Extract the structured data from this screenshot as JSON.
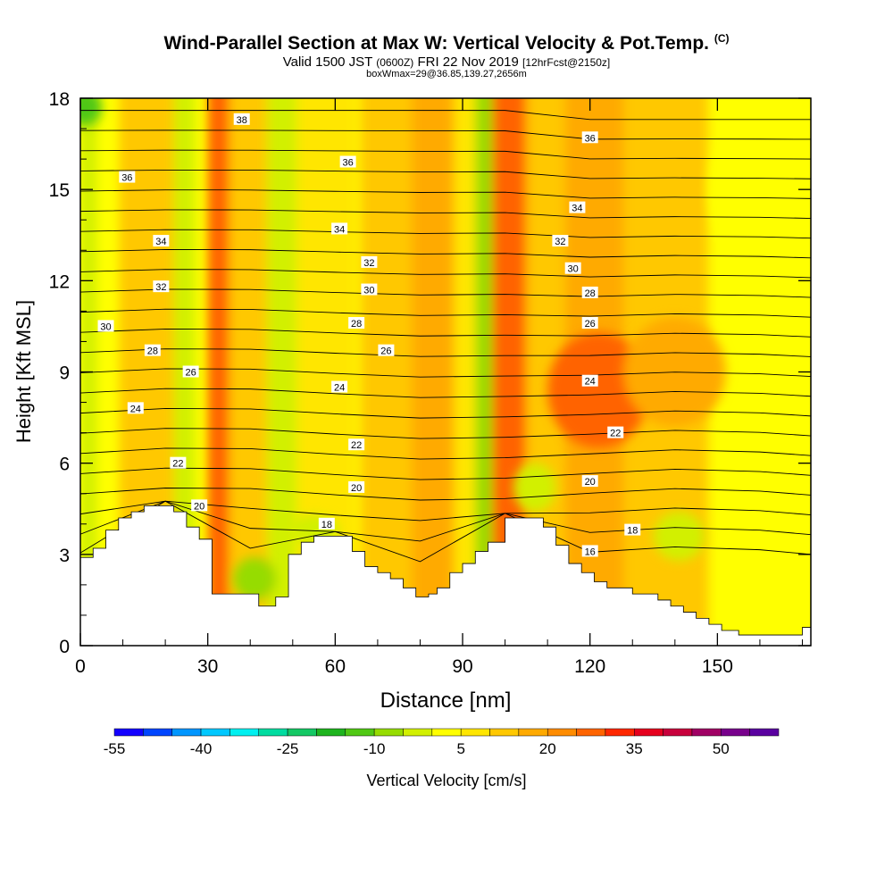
{
  "header": {
    "title": "Wind-Parallel Section at Max W: Vertical Velocity & Pot.Temp.",
    "copyright": "(C)",
    "valid_main": "Valid 1500 JST",
    "valid_zulu": "(0600Z)",
    "valid_date": "FRI 22 Nov 2019",
    "forecast": "[12hrFcst@2150z]",
    "box_info": "boxWmax=29@36.85,139.27,2656m"
  },
  "chart_data": {
    "type": "heatmap",
    "xlabel": "Distance [nm]",
    "ylabel": "Height [Kft MSL]",
    "xlim": [
      0,
      172
    ],
    "ylim": [
      0,
      18
    ],
    "x_ticks": [
      0,
      30,
      60,
      90,
      120,
      150
    ],
    "y_ticks": [
      0,
      3,
      6,
      9,
      12,
      15,
      18
    ],
    "colorbar": {
      "label": "Vertical Velocity [cm/s]",
      "tick_labels": [
        "-55",
        "-40",
        "-25",
        "-10",
        "5",
        "20",
        "35",
        "50"
      ],
      "colors": [
        "#1400ff",
        "#0046ff",
        "#0096ff",
        "#00c8ff",
        "#00f0f0",
        "#00dca0",
        "#14c864",
        "#1eb41e",
        "#50c814",
        "#96dc00",
        "#d2f000",
        "#ffff00",
        "#ffe600",
        "#ffc800",
        "#ffaa00",
        "#ff8c00",
        "#ff6400",
        "#ff2800",
        "#e6001e",
        "#c8003c",
        "#a00064",
        "#78008c",
        "#5a00a0"
      ]
    },
    "terrain": [
      [
        0,
        2.9
      ],
      [
        3,
        2.9
      ],
      [
        3,
        3.2
      ],
      [
        6,
        3.2
      ],
      [
        6,
        3.8
      ],
      [
        9,
        3.8
      ],
      [
        9,
        4.2
      ],
      [
        12,
        4.2
      ],
      [
        12,
        4.4
      ],
      [
        15,
        4.4
      ],
      [
        15,
        4.6
      ],
      [
        22,
        4.6
      ],
      [
        22,
        4.4
      ],
      [
        25,
        4.4
      ],
      [
        25,
        3.9
      ],
      [
        28,
        3.9
      ],
      [
        28,
        3.5
      ],
      [
        31,
        3.5
      ],
      [
        31,
        1.7
      ],
      [
        38,
        1.7
      ],
      [
        38,
        1.7
      ],
      [
        42,
        1.7
      ],
      [
        42,
        1.3
      ],
      [
        46,
        1.3
      ],
      [
        46,
        1.6
      ],
      [
        49,
        1.6
      ],
      [
        49,
        3.0
      ],
      [
        52,
        3.0
      ],
      [
        52,
        3.4
      ],
      [
        55,
        3.4
      ],
      [
        55,
        3.6
      ],
      [
        64,
        3.6
      ],
      [
        64,
        3.1
      ],
      [
        67,
        3.1
      ],
      [
        67,
        2.6
      ],
      [
        70,
        2.6
      ],
      [
        70,
        2.4
      ],
      [
        73,
        2.4
      ],
      [
        73,
        2.2
      ],
      [
        76,
        2.2
      ],
      [
        76,
        1.9
      ],
      [
        79,
        1.9
      ],
      [
        79,
        1.6
      ],
      [
        82,
        1.6
      ],
      [
        82,
        1.7
      ],
      [
        84,
        1.7
      ],
      [
        84,
        1.9
      ],
      [
        87,
        1.9
      ],
      [
        87,
        2.4
      ],
      [
        90,
        2.4
      ],
      [
        90,
        2.7
      ],
      [
        93,
        2.7
      ],
      [
        93,
        3.1
      ],
      [
        96,
        3.1
      ],
      [
        96,
        3.4
      ],
      [
        100,
        3.4
      ],
      [
        100,
        4.2
      ],
      [
        109,
        4.2
      ],
      [
        109,
        3.9
      ],
      [
        112,
        3.9
      ],
      [
        112,
        3.3
      ],
      [
        115,
        3.3
      ],
      [
        115,
        2.7
      ],
      [
        118,
        2.7
      ],
      [
        118,
        2.4
      ],
      [
        121,
        2.4
      ],
      [
        121,
        2.1
      ],
      [
        124,
        2.1
      ],
      [
        124,
        1.9
      ],
      [
        130,
        1.9
      ],
      [
        130,
        1.7
      ],
      [
        136,
        1.7
      ],
      [
        136,
        1.5
      ],
      [
        139,
        1.5
      ],
      [
        139,
        1.3
      ],
      [
        142,
        1.3
      ],
      [
        142,
        1.1
      ],
      [
        145,
        1.1
      ],
      [
        145,
        0.9
      ],
      [
        148,
        0.9
      ],
      [
        148,
        0.7
      ],
      [
        151,
        0.7
      ],
      [
        151,
        0.5
      ],
      [
        155,
        0.5
      ],
      [
        155,
        0.35
      ],
      [
        170,
        0.35
      ],
      [
        170,
        0.6
      ],
      [
        172,
        0.6
      ]
    ],
    "vertical_velocity_bands": [
      {
        "x": 0,
        "w": 4,
        "value": -10
      },
      {
        "x": 4,
        "w": 5,
        "value": -2
      },
      {
        "x": 9,
        "w": 17,
        "value": 5
      },
      {
        "x": 22,
        "w": 5,
        "value": -6
      },
      {
        "x": 30,
        "w": 6,
        "value": 22
      },
      {
        "x": 35,
        "w": 12,
        "value": 8
      },
      {
        "x": 44,
        "w": 7,
        "value": -10
      },
      {
        "x": 51,
        "w": 14,
        "value": 4
      },
      {
        "x": 66,
        "w": 12,
        "value": 8
      },
      {
        "x": 78,
        "w": 10,
        "value": 14
      },
      {
        "x": 88,
        "w": 5,
        "value": 3
      },
      {
        "x": 93,
        "w": 4,
        "value": -11
      },
      {
        "x": 97,
        "w": 8,
        "value": 20
      },
      {
        "x": 105,
        "w": 9,
        "value": 8
      },
      {
        "x": 114,
        "w": 14,
        "value": 11
      },
      {
        "x": 128,
        "w": 20,
        "value": 7
      },
      {
        "x": 148,
        "w": 24,
        "value": -4
      }
    ],
    "vertical_velocity_blobs": [
      {
        "x": 1,
        "y": 17.7,
        "rx": 4,
        "ry": 0.6,
        "value": -18
      },
      {
        "x": 41,
        "y": 2.2,
        "rx": 5,
        "ry": 0.7,
        "value": -14
      },
      {
        "x": 55,
        "y": 3.8,
        "rx": 6,
        "ry": 0.5,
        "value": -10
      },
      {
        "x": 107,
        "y": 5.2,
        "rx": 5,
        "ry": 0.8,
        "value": -9
      },
      {
        "x": 122,
        "y": 8.4,
        "rx": 12,
        "ry": 1.9,
        "value": 20
      },
      {
        "x": 140,
        "y": 9.0,
        "rx": 12,
        "ry": 1.8,
        "value": 14
      },
      {
        "x": 141,
        "y": 3.6,
        "rx": 6,
        "ry": 0.8,
        "value": -10
      },
      {
        "x": 165,
        "y": 3.3,
        "rx": 7,
        "ry": 1.6,
        "value": -2
      },
      {
        "x": 160,
        "y": 15.0,
        "rx": 12,
        "ry": 2.5,
        "value": -3
      }
    ],
    "pot_temp_labels": [
      {
        "text": "38",
        "x": 38,
        "y": 17.3
      },
      {
        "text": "36",
        "x": 11,
        "y": 15.4
      },
      {
        "text": "36",
        "x": 63,
        "y": 15.9
      },
      {
        "text": "36",
        "x": 120,
        "y": 16.7
      },
      {
        "text": "34",
        "x": 19,
        "y": 13.3
      },
      {
        "text": "34",
        "x": 61,
        "y": 13.7
      },
      {
        "text": "34",
        "x": 117,
        "y": 14.4
      },
      {
        "text": "32",
        "x": 19,
        "y": 11.8
      },
      {
        "text": "32",
        "x": 68,
        "y": 12.6
      },
      {
        "text": "32",
        "x": 113,
        "y": 13.3
      },
      {
        "text": "30",
        "x": 6,
        "y": 10.5
      },
      {
        "text": "30",
        "x": 68,
        "y": 11.7
      },
      {
        "text": "30",
        "x": 116,
        "y": 12.4
      },
      {
        "text": "28",
        "x": 17,
        "y": 9.7
      },
      {
        "text": "28",
        "x": 65,
        "y": 10.6
      },
      {
        "text": "28",
        "x": 120,
        "y": 11.6
      },
      {
        "text": "26",
        "x": 26,
        "y": 9.0
      },
      {
        "text": "26",
        "x": 72,
        "y": 9.7
      },
      {
        "text": "26",
        "x": 120,
        "y": 10.6
      },
      {
        "text": "24",
        "x": 13,
        "y": 7.8
      },
      {
        "text": "24",
        "x": 61,
        "y": 8.5
      },
      {
        "text": "24",
        "x": 120,
        "y": 8.7
      },
      {
        "text": "22",
        "x": 23,
        "y": 6.0
      },
      {
        "text": "22",
        "x": 65,
        "y": 6.6
      },
      {
        "text": "22",
        "x": 126,
        "y": 7.0
      },
      {
        "text": "20",
        "x": 28,
        "y": 4.6
      },
      {
        "text": "20",
        "x": 65,
        "y": 5.2
      },
      {
        "text": "20",
        "x": 120,
        "y": 5.4
      },
      {
        "text": "18",
        "x": 58,
        "y": 4.0
      },
      {
        "text": "18",
        "x": 130,
        "y": 3.8
      },
      {
        "text": "16",
        "x": 120,
        "y": 3.1
      }
    ],
    "pot_temp_values": [
      16,
      17,
      18,
      19,
      20,
      21,
      22,
      23,
      24,
      25,
      26,
      27,
      28,
      29,
      30,
      31,
      32,
      33,
      34,
      35,
      36,
      37,
      38
    ]
  }
}
